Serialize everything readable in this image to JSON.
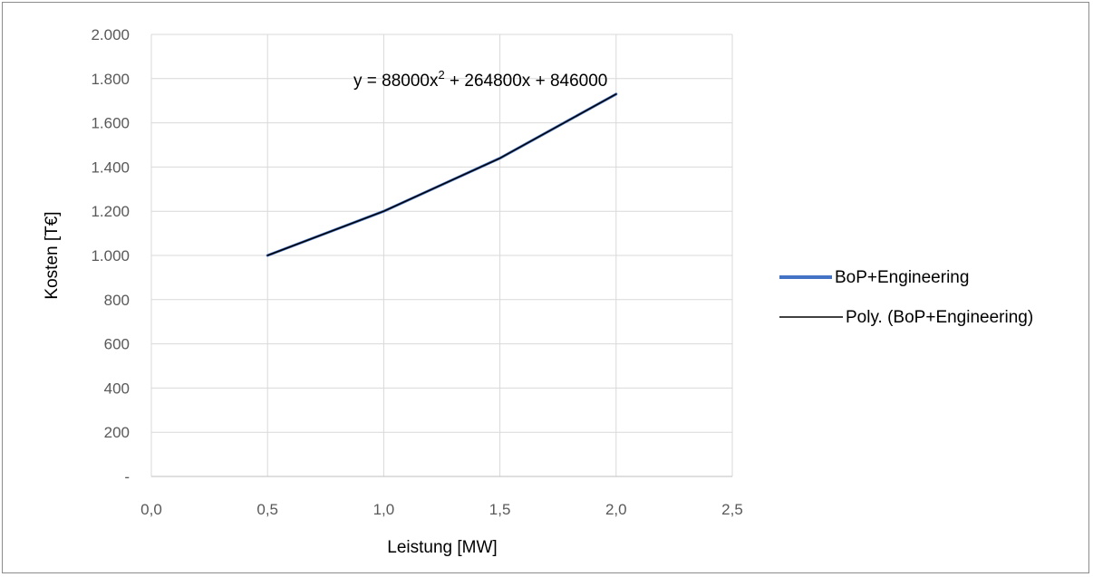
{
  "chart_data": {
    "type": "line",
    "xlabel": "Leistung [MW]",
    "ylabel": "Kosten [T€]",
    "xlim": [
      0,
      2.5
    ],
    "ylim": [
      0,
      2000
    ],
    "x_ticks": [
      "0,0",
      "0,5",
      "1,0",
      "1,5",
      "2,0",
      "2,5"
    ],
    "y_ticks": [
      "-",
      "200",
      "400",
      "600",
      "800",
      "1.000",
      "1.200",
      "1.400",
      "1.600",
      "1.800",
      "2.000"
    ],
    "grid": true,
    "legend_position": "right",
    "series": [
      {
        "name": "BoP+Engineering",
        "x": [
          0.5,
          1.0,
          1.5,
          2.0
        ],
        "y": [
          1000,
          1200,
          1440,
          1730
        ],
        "color": "#4472c4"
      },
      {
        "name": "Poly. (BoP+Engineering)",
        "x": [
          0.5,
          1.0,
          1.5,
          2.0
        ],
        "y": [
          1000,
          1200,
          1440,
          1730
        ],
        "color": "#000000",
        "trendline": "polynomial"
      }
    ],
    "equation": {
      "base": "y = 88000x",
      "exponent": "2",
      "rest": " + 264800x + 846000"
    }
  }
}
